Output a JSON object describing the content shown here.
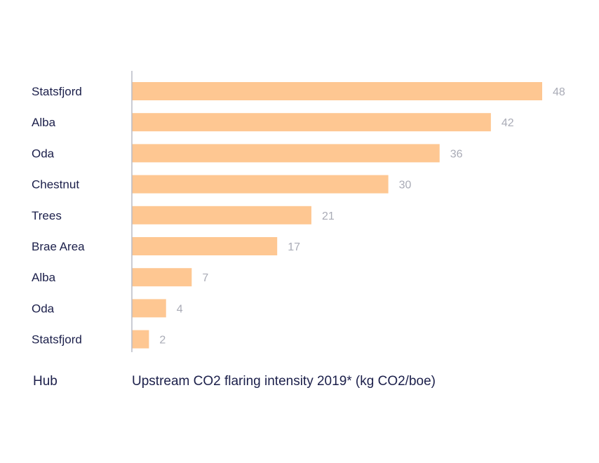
{
  "chart_data": {
    "type": "bar",
    "orientation": "horizontal",
    "categories": [
      "Statsfjord",
      "Alba",
      "Oda",
      "Chestnut",
      "Trees",
      "Brae Area",
      "Alba",
      "Oda",
      "Statsfjord"
    ],
    "values": [
      48,
      42,
      36,
      30,
      21,
      17,
      7,
      4,
      2
    ],
    "ylabel": "Hub",
    "xlabel": "Upstream CO2 flaring intensity 2019* (kg CO2/boe)",
    "xlim": [
      0,
      48
    ],
    "grid": false,
    "bar_color": "#fec792",
    "axis_color": "#b9bcc6",
    "label_color": "#1b1f4a",
    "value_color": "#a9abb6"
  }
}
